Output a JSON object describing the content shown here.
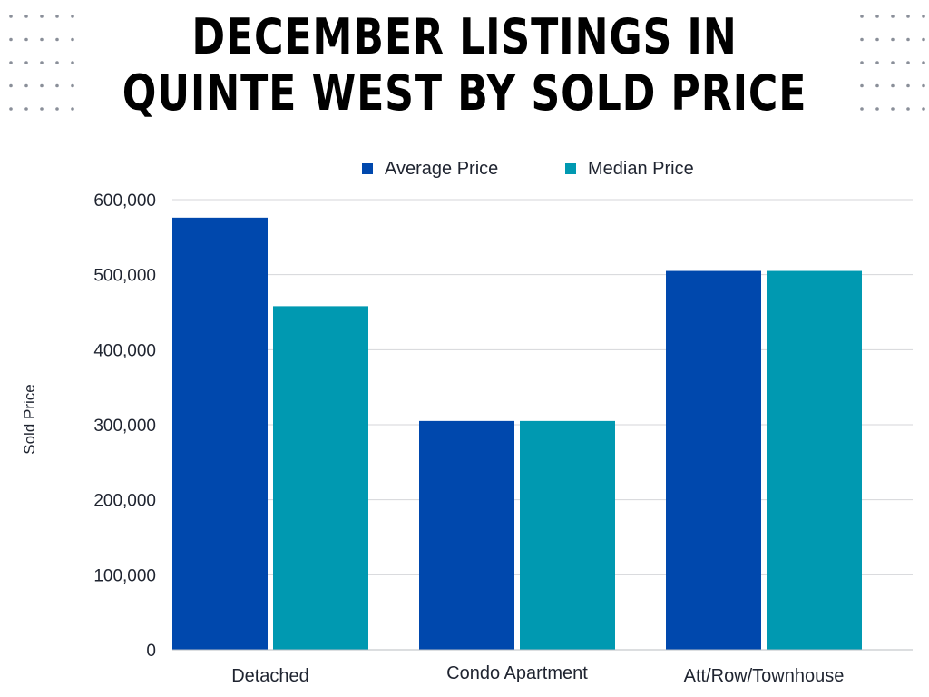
{
  "title_line1": "DECEMBER LISTINGS IN",
  "title_line2": "QUINTE WEST BY SOLD PRICE",
  "chart_data": {
    "type": "bar",
    "categories": [
      "Detached",
      "Condo Apartment",
      "Att/Row/Townhouse"
    ],
    "series": [
      {
        "name": "Average Price",
        "values": [
          576000,
          305000,
          505000
        ],
        "color": "#0048ad"
      },
      {
        "name": "Median Price",
        "values": [
          458000,
          305000,
          505000
        ],
        "color": "#0099b1"
      }
    ],
    "ylabel": "Sold Price",
    "xlabel": "",
    "ylim": [
      0,
      600000
    ],
    "yticks": [
      0,
      100000,
      200000,
      300000,
      400000,
      500000,
      600000
    ],
    "ytick_labels": [
      "0",
      "100,000",
      "200,000",
      "300,000",
      "400,000",
      "500,000",
      "600,000"
    ],
    "grid": true,
    "legend_position": "top"
  }
}
